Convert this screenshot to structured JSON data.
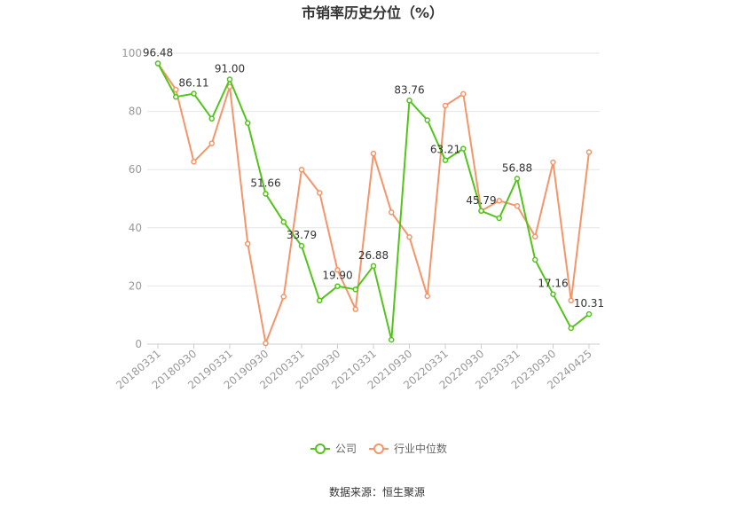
{
  "chart_data": {
    "type": "line",
    "title": "市销率历史分位（%）",
    "source": "数据来源：恒生聚源",
    "xlabel": "",
    "ylabel": "",
    "ylim": [
      0,
      100
    ],
    "yticks": [
      0,
      20,
      40,
      60,
      80,
      100
    ],
    "grid": true,
    "legend_position": "bottom",
    "x_tick_labels": [
      "20180331",
      "20180930",
      "20190331",
      "20190930",
      "20200331",
      "20200930",
      "20210331",
      "20210930",
      "20220331",
      "20220930",
      "20230331",
      "20230930",
      "20240425"
    ],
    "series": [
      {
        "name": "公司",
        "color": "#52c41a",
        "values": [
          96.48,
          85.0,
          86.11,
          77.5,
          91.0,
          76.0,
          51.66,
          42.0,
          33.79,
          15.0,
          19.9,
          18.8,
          26.88,
          1.5,
          83.76,
          77.0,
          63.21,
          67.2,
          45.79,
          43.3,
          56.88,
          29.0,
          17.16,
          5.5,
          10.31
        ],
        "labels": {
          "0": "96.48",
          "2": "86.11",
          "4": "91.00",
          "6": "51.66",
          "8": "33.79",
          "10": "19.90",
          "12": "26.88",
          "14": "83.76",
          "16": "63.21",
          "18": "45.79",
          "20": "56.88",
          "22": "17.16",
          "24": "10.31"
        }
      },
      {
        "name": "行业中位数",
        "color": "#f4956a",
        "values": [
          96.48,
          87.5,
          62.7,
          69.0,
          88.5,
          34.5,
          0.3,
          16.3,
          60.0,
          52.0,
          25.5,
          12.0,
          65.5,
          45.3,
          36.8,
          16.5,
          82.0,
          86.0,
          45.8,
          49.3,
          47.5,
          37.0,
          62.5,
          15.0,
          66.0
        ],
        "labels": {}
      }
    ]
  }
}
